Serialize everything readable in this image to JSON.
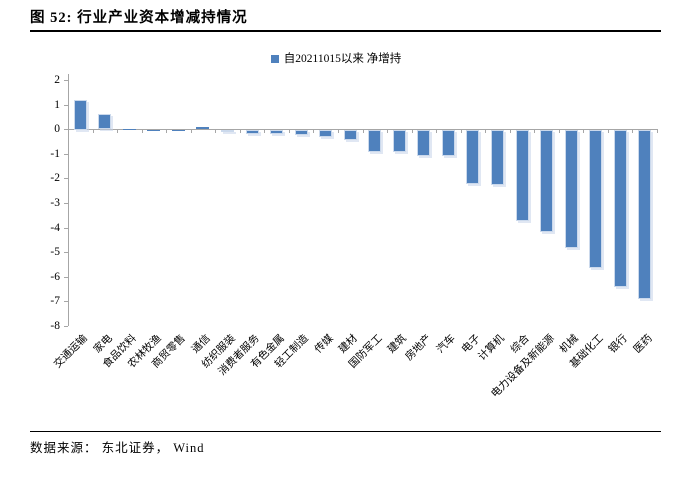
{
  "figure": {
    "title": "图 52: 行业产业资本增减持情况",
    "source": "数据来源： 东北证券， Wind"
  },
  "legend": {
    "label": "自20211015以来 净增持",
    "marker_color": "#4F81BD"
  },
  "chart_data": {
    "type": "bar",
    "title": "行业产业资本增减持情况",
    "categories": [
      "交通运输",
      "家电",
      "食品饮料",
      "农林牧渔",
      "商贸零售",
      "通信",
      "纺织服装",
      "消费者服务",
      "有色金属",
      "轻工制造",
      "传媒",
      "建材",
      "国防军工",
      "建筑",
      "房地产",
      "汽车",
      "电子",
      "计算机",
      "综合",
      "电力设备及新能源",
      "机械",
      "基础化工",
      "银行",
      "医药"
    ],
    "series": [
      {
        "name": "自20211015以来 净增持",
        "values": [
          1.2,
          0.6,
          0.02,
          -0.02,
          -0.03,
          0.08,
          -0.1,
          -0.15,
          -0.18,
          -0.2,
          -0.3,
          -0.4,
          -0.9,
          -0.9,
          -1.05,
          -1.05,
          -2.2,
          -2.25,
          -3.7,
          -4.15,
          -4.8,
          -5.6,
          -6.4,
          -6.85
        ]
      }
    ],
    "xlabel": "",
    "ylabel": "",
    "ylim": [
      -8,
      2
    ],
    "yticks": [
      2,
      1,
      0,
      -1,
      -2,
      -3,
      -4,
      -5,
      -6,
      -7,
      -8
    ],
    "grid": false,
    "legend_position": "top-center",
    "bar_color": "#4F81BD",
    "bar_border_color": "#CBD9EC",
    "axis_color": "#A6A6A6"
  }
}
